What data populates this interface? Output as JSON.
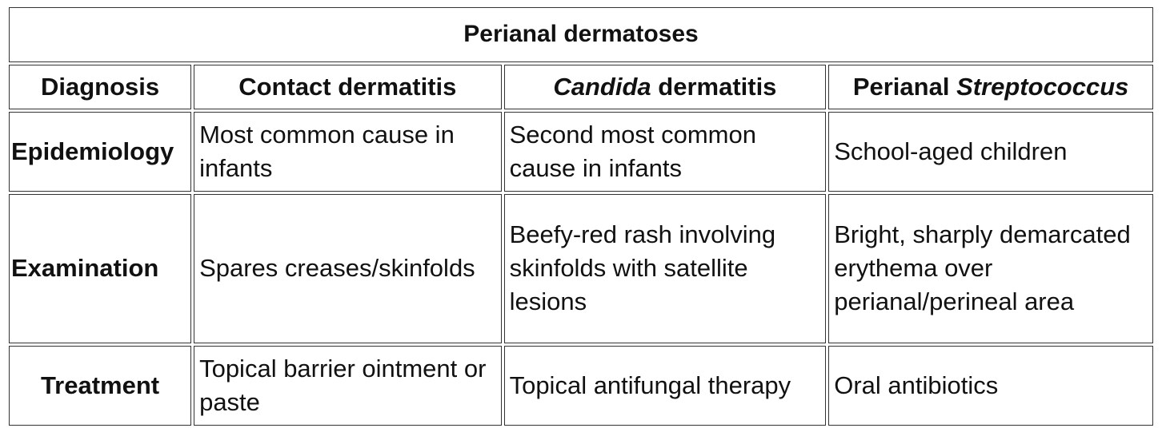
{
  "table": {
    "title": "Perianal dermatoses",
    "header": {
      "diagnosis": "Diagnosis",
      "contact": "Contact dermatitis",
      "candida_italic": "Candida",
      "candida_rest": " dermatitis",
      "strep_prefix": "Perianal ",
      "strep_italic": "Streptococcus"
    },
    "rows": [
      {
        "label": "Epidemiology",
        "contact": "Most common cause in infants",
        "candida": "Second most common cause in infants",
        "strep": "School-aged children"
      },
      {
        "label": "Examination",
        "contact": "Spares creases/skinfolds",
        "candida": "Beefy-red rash involving skinfolds with satellite lesions",
        "strep": "Bright, sharply demarcated erythema over perianal/perineal area"
      },
      {
        "label": "Treatment",
        "contact": "Topical barrier ointment or paste",
        "candida": "Topical antifungal therapy",
        "strep": "Oral antibiotics"
      }
    ]
  }
}
